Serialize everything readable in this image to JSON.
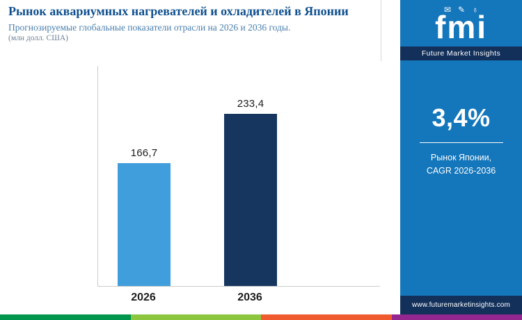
{
  "chart_data": {
    "type": "bar",
    "title": "Рынок аквариумных нагревателей и охладителей в Японии",
    "subtitle": "Прогнозируемые глобальные показатели отрасли на 2026 и 2036 годы.",
    "unit_label": "(млн долл. США)",
    "categories": [
      "2026",
      "2036"
    ],
    "values": [
      166.7,
      233.4
    ],
    "value_labels": [
      "166,7",
      "233,4"
    ],
    "ylim": [
      0,
      250
    ],
    "grid": false,
    "legend": "none",
    "bar_colors": [
      "#3f9edb",
      "#16365f"
    ]
  },
  "sidebar": {
    "logo_text": "fmi",
    "logo_icon_1": "✉",
    "logo_icon_2": "✎",
    "logo_icon_3": "♁",
    "brand_name": "Future Market Insights",
    "stat_value": "3,4%",
    "stat_label_line1": "Рынок Японии,",
    "stat_label_line2": "CAGR 2026-2036",
    "website": "www.futuremarketinsights.com"
  },
  "colors": {
    "title_blue": "#10508f",
    "subtitle_blue": "#4a7fae",
    "panel_blue": "#1476bb",
    "navy_band": "#12305a",
    "bar_light_blue": "#3f9edb",
    "bar_navy": "#16365f",
    "strip_segments": [
      "#00954c",
      "#8cc63e",
      "#ef5b2f",
      "#93268f"
    ]
  }
}
